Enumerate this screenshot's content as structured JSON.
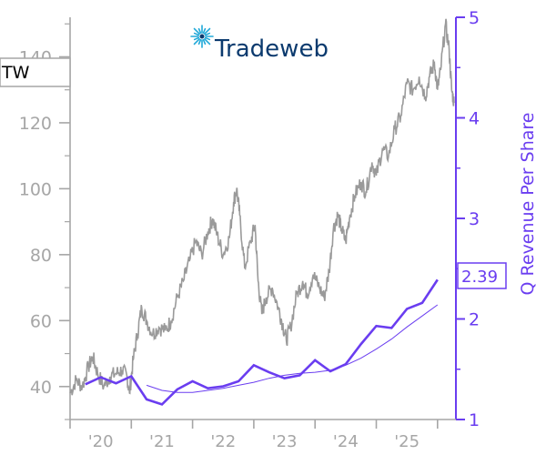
{
  "ticker": "TW",
  "logo": {
    "text": "Tradeweb",
    "icon": "starburst-icon"
  },
  "colors": {
    "price": "#9a9a9a",
    "revenue": "#6a3df0",
    "axis_left": "#a6a6a6",
    "axis_right": "#6a3df0",
    "logo_text": "#0b3a6e",
    "logo_icon": "#20a8d8"
  },
  "chart_data": {
    "type": "line",
    "x_tick_labels": [
      "'20",
      "'21",
      "'22",
      "'23",
      "'24",
      "'25"
    ],
    "x_ticks": [
      2019.25,
      2020.25,
      2021.25,
      2022.25,
      2023.25,
      2024.25,
      2025.25
    ],
    "xlim": [
      2019.25,
      2025.55
    ],
    "left_axis": {
      "ticks": [
        40,
        60,
        80,
        100,
        120,
        140
      ],
      "ylim": [
        30,
        152
      ]
    },
    "right_axis": {
      "label": "Q Revenue Per Share",
      "ticks": [
        1,
        2,
        3,
        4,
        5
      ],
      "ylim": [
        1,
        5
      ]
    },
    "price_series": {
      "axis": "left",
      "points": [
        [
          2019.25,
          38
        ],
        [
          2019.35,
          42
        ],
        [
          2019.45,
          40
        ],
        [
          2019.55,
          46
        ],
        [
          2019.62,
          49
        ],
        [
          2019.7,
          44
        ],
        [
          2019.8,
          40
        ],
        [
          2019.9,
          43
        ],
        [
          2020.0,
          44
        ],
        [
          2020.1,
          45
        ],
        [
          2020.18,
          43
        ],
        [
          2020.22,
          38
        ],
        [
          2020.28,
          48
        ],
        [
          2020.35,
          56
        ],
        [
          2020.42,
          64
        ],
        [
          2020.5,
          60
        ],
        [
          2020.6,
          56
        ],
        [
          2020.7,
          58
        ],
        [
          2020.8,
          57
        ],
        [
          2020.9,
          60
        ],
        [
          2021.0,
          67
        ],
        [
          2021.1,
          72
        ],
        [
          2021.2,
          78
        ],
        [
          2021.3,
          84
        ],
        [
          2021.4,
          80
        ],
        [
          2021.5,
          87
        ],
        [
          2021.58,
          91
        ],
        [
          2021.65,
          86
        ],
        [
          2021.75,
          80
        ],
        [
          2021.85,
          85
        ],
        [
          2021.92,
          96
        ],
        [
          2021.97,
          100
        ],
        [
          2022.02,
          92
        ],
        [
          2022.1,
          76
        ],
        [
          2022.2,
          84
        ],
        [
          2022.27,
          89
        ],
        [
          2022.32,
          72
        ],
        [
          2022.38,
          62
        ],
        [
          2022.45,
          67
        ],
        [
          2022.55,
          70
        ],
        [
          2022.65,
          64
        ],
        [
          2022.72,
          59
        ],
        [
          2022.78,
          54
        ],
        [
          2022.85,
          58
        ],
        [
          2022.95,
          68
        ],
        [
          2023.05,
          72
        ],
        [
          2023.12,
          68
        ],
        [
          2023.22,
          74
        ],
        [
          2023.32,
          70
        ],
        [
          2023.4,
          67
        ],
        [
          2023.48,
          75
        ],
        [
          2023.55,
          88
        ],
        [
          2023.62,
          92
        ],
        [
          2023.68,
          88
        ],
        [
          2023.75,
          84
        ],
        [
          2023.82,
          92
        ],
        [
          2023.9,
          98
        ],
        [
          2024.0,
          102
        ],
        [
          2024.08,
          99
        ],
        [
          2024.18,
          108
        ],
        [
          2024.25,
          104
        ],
        [
          2024.35,
          112
        ],
        [
          2024.45,
          110
        ],
        [
          2024.55,
          118
        ],
        [
          2024.65,
          122
        ],
        [
          2024.75,
          132
        ],
        [
          2024.85,
          130
        ],
        [
          2024.95,
          134
        ],
        [
          2025.05,
          128
        ],
        [
          2025.12,
          134
        ],
        [
          2025.2,
          138
        ],
        [
          2025.25,
          130
        ],
        [
          2025.3,
          136
        ],
        [
          2025.38,
          150
        ],
        [
          2025.44,
          142
        ],
        [
          2025.48,
          130
        ],
        [
          2025.52,
          126
        ]
      ]
    },
    "revenue_series": {
      "axis": "right",
      "points": [
        [
          2019.5,
          1.35
        ],
        [
          2019.75,
          1.42
        ],
        [
          2020.0,
          1.36
        ],
        [
          2020.25,
          1.43
        ],
        [
          2020.5,
          1.2
        ],
        [
          2020.75,
          1.15
        ],
        [
          2021.0,
          1.3
        ],
        [
          2021.25,
          1.38
        ],
        [
          2021.5,
          1.31
        ],
        [
          2021.75,
          1.33
        ],
        [
          2022.0,
          1.38
        ],
        [
          2022.25,
          1.54
        ],
        [
          2022.5,
          1.47
        ],
        [
          2022.75,
          1.41
        ],
        [
          2023.0,
          1.44
        ],
        [
          2023.25,
          1.59
        ],
        [
          2023.5,
          1.48
        ],
        [
          2023.75,
          1.55
        ],
        [
          2024.0,
          1.75
        ],
        [
          2024.25,
          1.93
        ],
        [
          2024.5,
          1.91
        ],
        [
          2024.75,
          2.1
        ],
        [
          2025.0,
          2.16
        ],
        [
          2025.25,
          2.39
        ]
      ]
    },
    "revenue_trend_series": {
      "axis": "right",
      "points": [
        [
          2020.5,
          1.34
        ],
        [
          2020.75,
          1.29
        ],
        [
          2021.0,
          1.27
        ],
        [
          2021.25,
          1.27
        ],
        [
          2021.5,
          1.29
        ],
        [
          2021.75,
          1.31
        ],
        [
          2022.0,
          1.34
        ],
        [
          2022.25,
          1.37
        ],
        [
          2022.5,
          1.41
        ],
        [
          2022.75,
          1.44
        ],
        [
          2023.0,
          1.46
        ],
        [
          2023.25,
          1.47
        ],
        [
          2023.5,
          1.49
        ],
        [
          2023.75,
          1.54
        ],
        [
          2024.0,
          1.61
        ],
        [
          2024.25,
          1.7
        ],
        [
          2024.5,
          1.8
        ],
        [
          2024.75,
          1.92
        ],
        [
          2025.0,
          2.03
        ],
        [
          2025.25,
          2.14
        ]
      ]
    },
    "last_value_label": "2.39"
  }
}
